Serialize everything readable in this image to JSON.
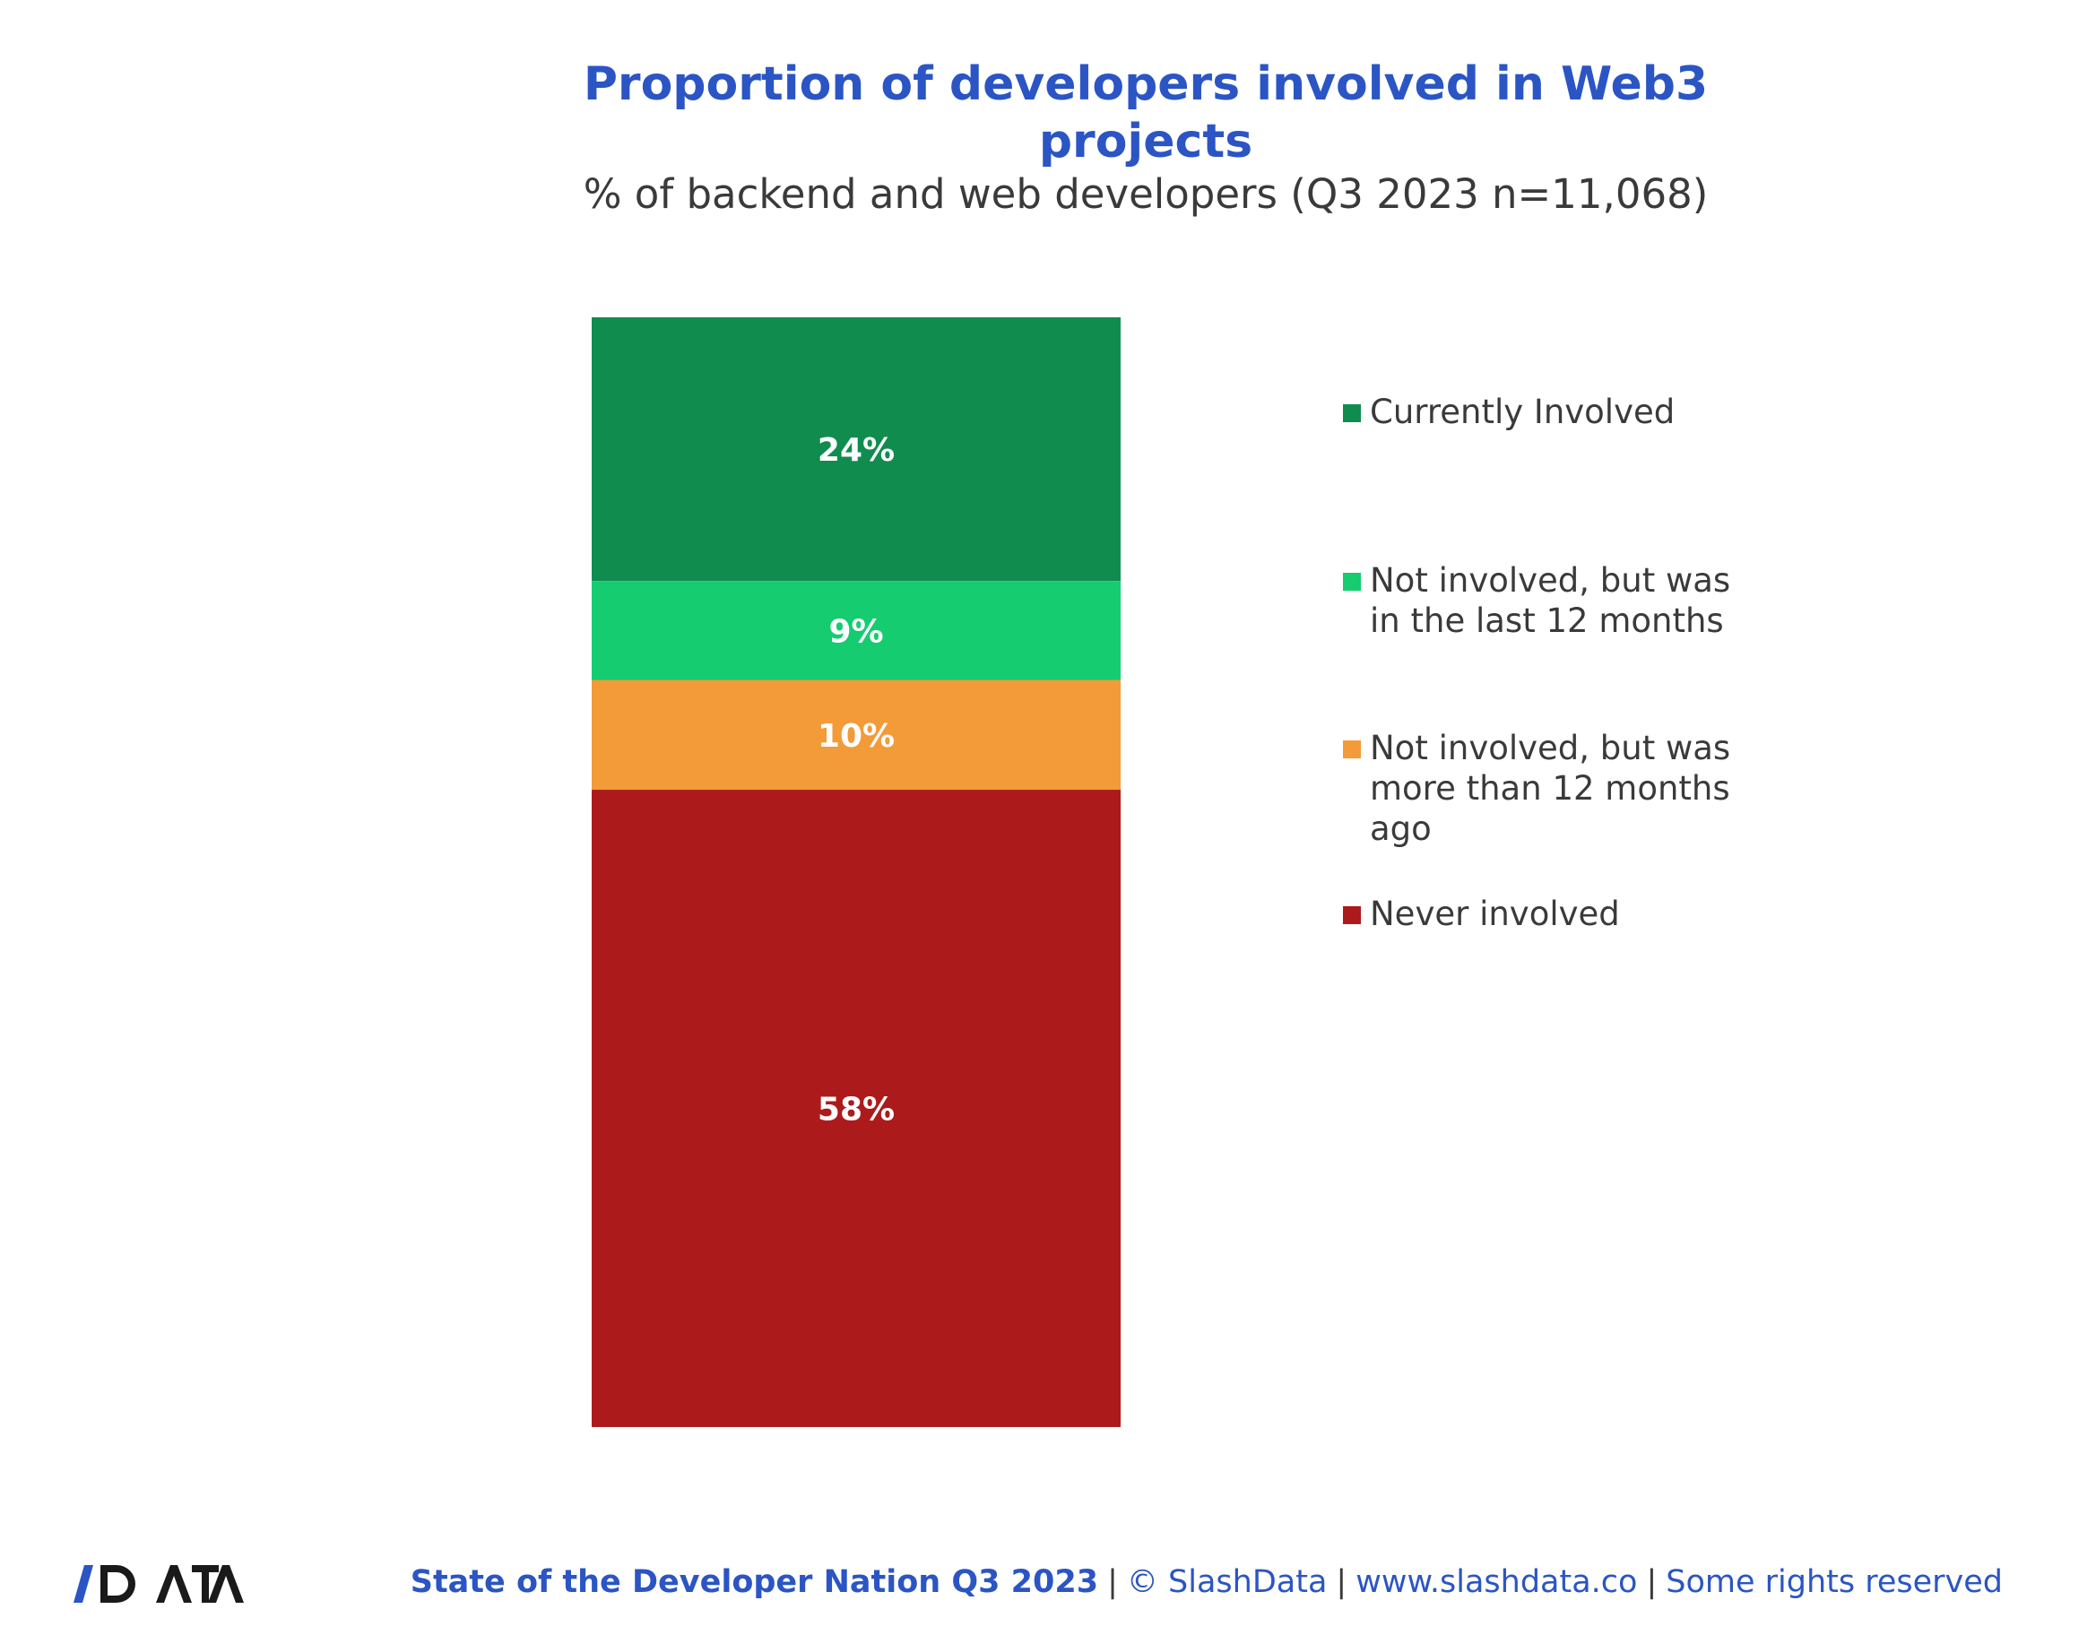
{
  "title": "Proportion of developers involved in Web3 projects",
  "subtitle": "% of backend and web developers (Q3 2023 n=11,068)",
  "chart_data": {
    "type": "bar",
    "stacked": true,
    "title": "Proportion of developers involved in Web3 projects",
    "subtitle": "% of backend and web developers (Q3 2023 n=11,068)",
    "categories": [
      ""
    ],
    "series": [
      {
        "name": "Currently Involved",
        "values": [
          24
        ],
        "label": "24%",
        "color": "#108c4f"
      },
      {
        "name": "Not involved, but was in the last 12 months",
        "values": [
          9
        ],
        "label": "9%",
        "color": "#15cc70"
      },
      {
        "name": "Not involved, but was more than 12 months ago",
        "values": [
          10
        ],
        "label": "10%",
        "color": "#f39a39"
      },
      {
        "name": "Never involved",
        "values": [
          58
        ],
        "label": "58%",
        "color": "#ad1a1c"
      }
    ],
    "legend_position": "right",
    "grid": false,
    "axes_visible": false
  },
  "footer": {
    "report": "State of the Developer Nation Q3 2023",
    "copyright": "© SlashData",
    "url": "www.slashdata.co",
    "rights": "Some rights reserved",
    "separator": "|"
  },
  "logo": {
    "text": "/DATA",
    "slash_color": "#2b55c4",
    "text_color": "#1a1a1a"
  }
}
